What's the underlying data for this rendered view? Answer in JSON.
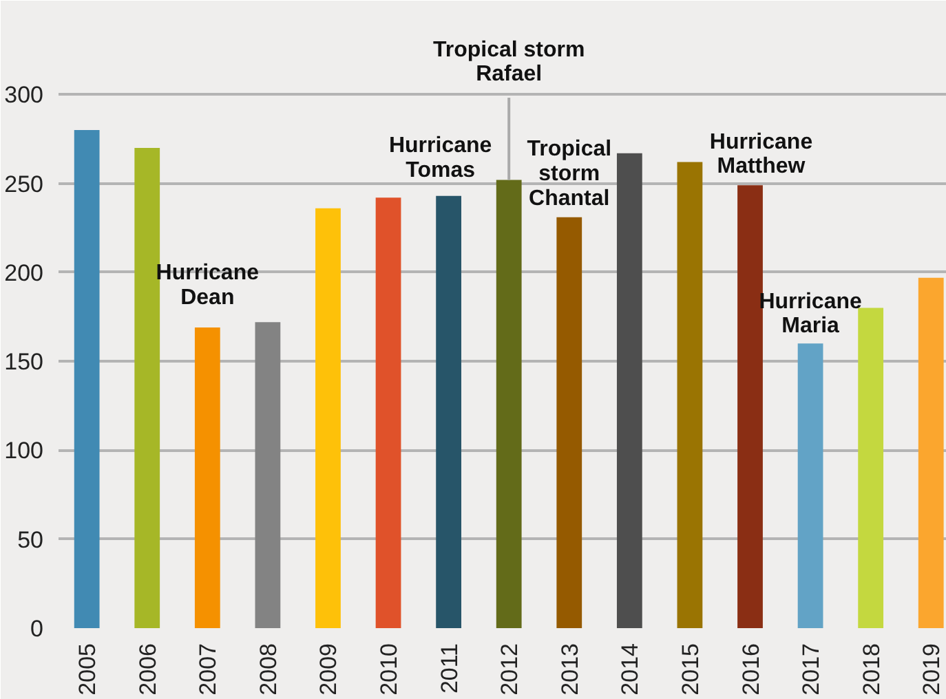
{
  "chart_data": {
    "type": "bar",
    "categories": [
      "2005",
      "2006",
      "2007",
      "2008",
      "2009",
      "2010",
      "2011",
      "2012",
      "2013",
      "2014",
      "2015",
      "2016",
      "2017",
      "2018",
      "2019"
    ],
    "values": [
      280,
      270,
      169,
      172,
      236,
      242,
      243,
      252,
      231,
      267,
      262,
      249,
      160,
      180,
      197
    ],
    "colors": [
      "#418ab3",
      "#a6b727",
      "#f59100",
      "#838383",
      "#fec109",
      "#e0522a",
      "#275569",
      "#636b19",
      "#955a00",
      "#4e4e4e",
      "#9a7402",
      "#8a2e14",
      "#62a3c6",
      "#c4d83f",
      "#fba62e"
    ],
    "ylim": [
      0,
      345
    ],
    "yticks": [
      0,
      50,
      100,
      150,
      200,
      250,
      300
    ],
    "grid": "y",
    "annotations": [
      {
        "text": "Hurricane\nDean",
        "x": "2007",
        "y": 169
      },
      {
        "text": "Hurricane\nTomas",
        "x": "2011",
        "y": 243
      },
      {
        "text": "Tropical storm\nRafael",
        "x": "2012",
        "y": 252
      },
      {
        "text": "Tropical\nstorm\nChantal",
        "x": "2013",
        "y": 231
      },
      {
        "text": "Hurricane\nMatthew",
        "x": "2016",
        "y": 249
      },
      {
        "text": "Hurricane\nMaria",
        "x": "2017",
        "y": 160
      }
    ]
  }
}
